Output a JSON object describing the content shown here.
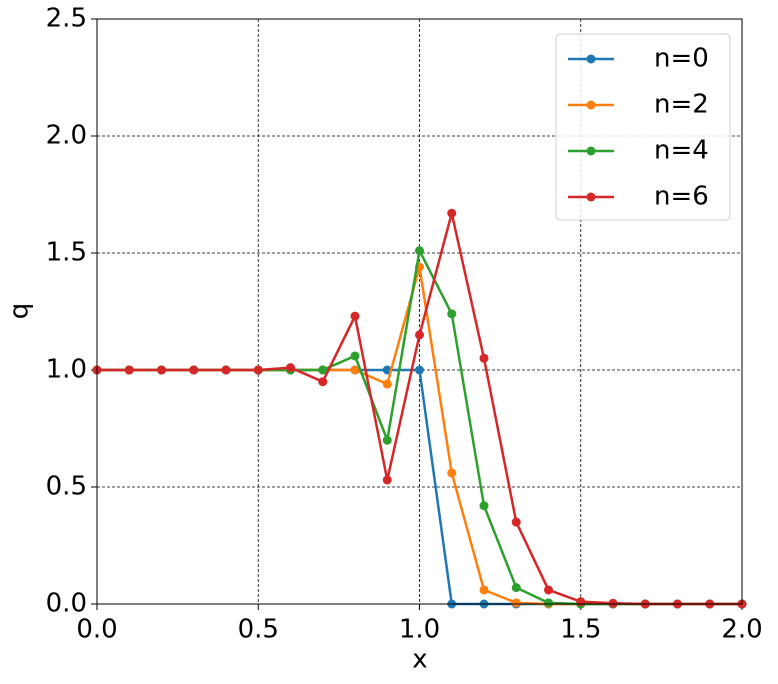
{
  "chart_data": {
    "type": "line",
    "x_label": "x",
    "y_label": "q",
    "x": [
      0,
      0.1,
      0.2,
      0.3,
      0.4,
      0.5,
      0.6,
      0.7,
      0.8,
      0.9,
      1.0,
      1.1,
      1.2,
      1.3,
      1.4,
      1.5,
      1.6,
      1.7,
      1.8,
      1.9,
      2.0
    ],
    "series": [
      {
        "name": "n=0",
        "color": "#1f77b4",
        "values": [
          1,
          1,
          1,
          1,
          1,
          1,
          1,
          1,
          1,
          1,
          1,
          0,
          0,
          0,
          0,
          0,
          0,
          0,
          0,
          0,
          0
        ]
      },
      {
        "name": "n=2",
        "color": "#ff7f0e",
        "values": [
          1,
          1,
          1,
          1,
          1,
          1,
          1,
          1,
          1.0,
          0.94,
          1.44,
          0.56,
          0.06,
          0.005,
          0,
          0,
          0,
          0,
          0,
          0,
          0
        ]
      },
      {
        "name": "n=4",
        "color": "#2ca02c",
        "values": [
          1,
          1,
          1,
          1,
          1,
          1,
          1.0,
          1.0,
          1.06,
          0.7,
          1.51,
          1.24,
          0.42,
          0.07,
          0.005,
          0,
          0,
          0,
          0,
          0,
          0
        ]
      },
      {
        "name": "n=6",
        "color": "#d62728",
        "values": [
          1,
          1,
          1,
          1,
          1,
          1,
          1.01,
          0.95,
          1.23,
          0.53,
          1.15,
          1.67,
          1.05,
          0.35,
          0.06,
          0.01,
          0.003,
          0,
          0,
          0,
          0
        ]
      }
    ],
    "xlim": [
      0,
      2.0
    ],
    "xticks": [
      {
        "value": 0,
        "label": "0.0"
      },
      0.5,
      {
        "value": 1,
        "label": "1.0"
      },
      1.5,
      {
        "value": 2,
        "label": "2.0"
      }
    ],
    "ylim": [
      0,
      2.5
    ],
    "yticks": [
      {
        "value": 0,
        "label": "0.0"
      },
      0.5,
      {
        "value": 1,
        "label": "1.0"
      },
      1.5,
      {
        "value": 2,
        "label": "2.0"
      },
      2.5
    ],
    "grid": true,
    "legend": "upper-right"
  }
}
